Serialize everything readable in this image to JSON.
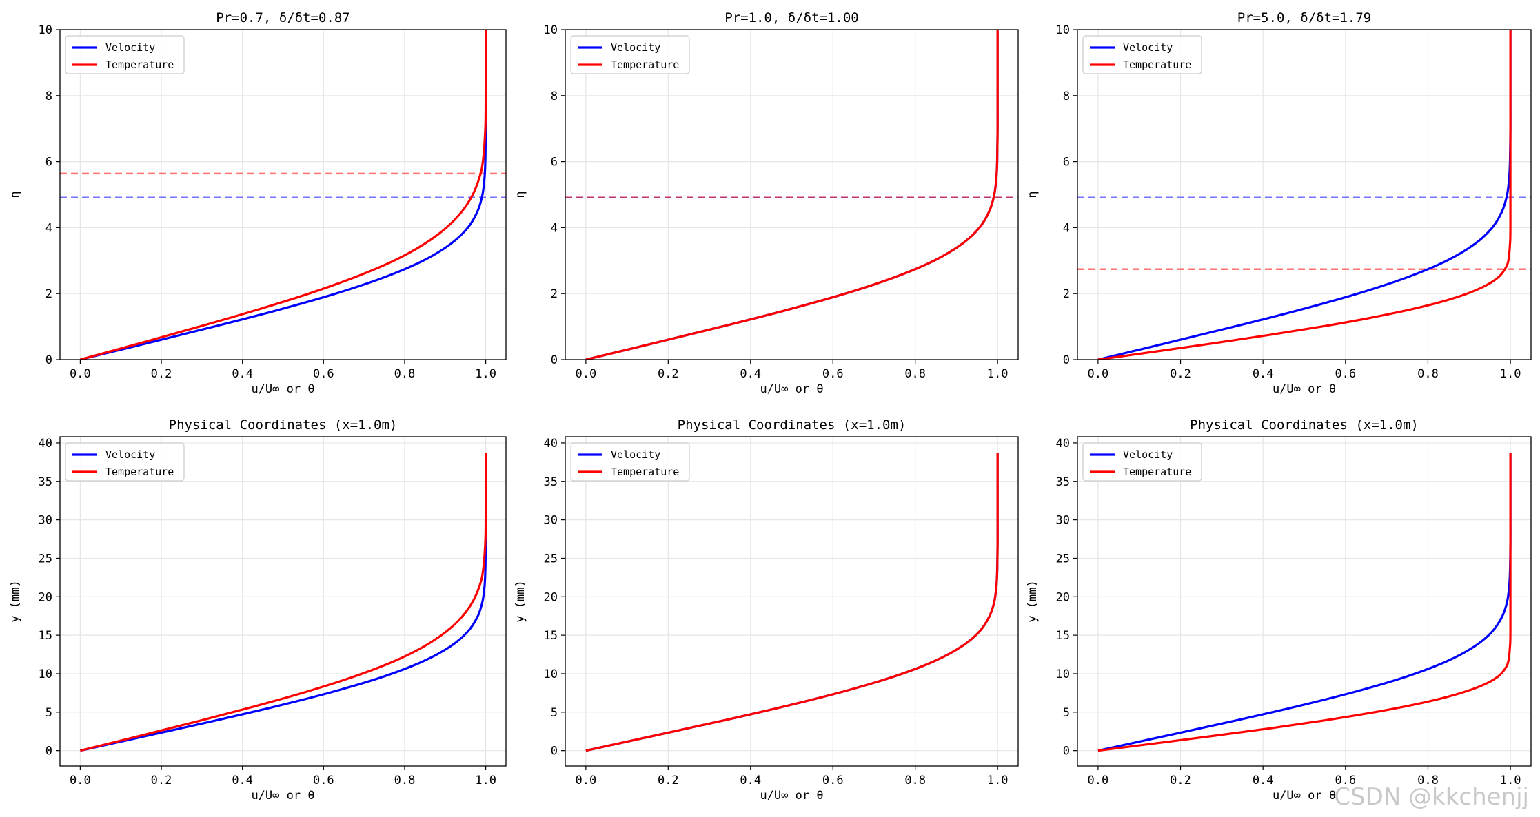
{
  "figure": {
    "watermark": "CSDN @kkchenjj",
    "colors": {
      "velocity": "#0000ff",
      "temperature": "#ff0000",
      "grid": "#e6e6e6",
      "background": "#ffffff"
    }
  },
  "chart_data": [
    {
      "type": "line",
      "title": "Pr=0.7, δ/δt=0.87",
      "xlabel": "u/U∞ or θ",
      "ylabel": "η",
      "xlim": [
        -0.05,
        1.05
      ],
      "ylim": [
        0,
        10
      ],
      "xticks": [
        "0.0",
        "0.2",
        "0.4",
        "0.6",
        "0.8",
        "1.0"
      ],
      "yticks": [
        "0",
        "2",
        "4",
        "6",
        "8",
        "10"
      ],
      "grid": true,
      "legend": "top-left",
      "hlines": [
        {
          "y": 4.91,
          "color": "velocity",
          "style": "dashed"
        },
        {
          "y": 5.64,
          "color": "temperature",
          "style": "dashed"
        }
      ],
      "series": [
        {
          "name": "Velocity",
          "color": "velocity",
          "y": [
            0,
            0.5,
            1,
            1.5,
            2,
            2.5,
            3,
            3.5,
            4,
            4.5,
            5,
            5.5,
            6,
            7,
            8,
            10
          ],
          "x": [
            0,
            0.166,
            0.33,
            0.487,
            0.63,
            0.751,
            0.846,
            0.913,
            0.956,
            0.98,
            0.992,
            0.997,
            0.999,
            1.0,
            1.0,
            1.0
          ]
        },
        {
          "name": "Temperature",
          "color": "temperature",
          "y": [
            0,
            0.5,
            1,
            1.5,
            2,
            2.5,
            3,
            3.5,
            4,
            4.5,
            5,
            5.5,
            6,
            7,
            8,
            10
          ],
          "x": [
            0,
            0.148,
            0.294,
            0.434,
            0.564,
            0.678,
            0.774,
            0.848,
            0.903,
            0.942,
            0.968,
            0.984,
            0.993,
            0.999,
            1.0,
            1.0
          ]
        }
      ]
    },
    {
      "type": "line",
      "title": "Pr=1.0, δ/δt=1.00",
      "xlabel": "u/U∞ or θ",
      "ylabel": "η",
      "xlim": [
        -0.05,
        1.05
      ],
      "ylim": [
        0,
        10
      ],
      "xticks": [
        "0.0",
        "0.2",
        "0.4",
        "0.6",
        "0.8",
        "1.0"
      ],
      "yticks": [
        "0",
        "2",
        "4",
        "6",
        "8",
        "10"
      ],
      "grid": true,
      "legend": "top-left",
      "hlines": [
        {
          "y": 4.91,
          "color": "velocity",
          "style": "dashed"
        },
        {
          "y": 4.91,
          "color": "temperature",
          "style": "dashed"
        }
      ],
      "series": [
        {
          "name": "Velocity",
          "color": "velocity",
          "y": [
            0,
            0.5,
            1,
            1.5,
            2,
            2.5,
            3,
            3.5,
            4,
            4.5,
            5,
            5.5,
            6,
            7,
            8,
            10
          ],
          "x": [
            0,
            0.166,
            0.33,
            0.487,
            0.63,
            0.751,
            0.846,
            0.913,
            0.956,
            0.98,
            0.992,
            0.997,
            0.999,
            1.0,
            1.0,
            1.0
          ]
        },
        {
          "name": "Temperature",
          "color": "temperature",
          "y": [
            0,
            0.5,
            1,
            1.5,
            2,
            2.5,
            3,
            3.5,
            4,
            4.5,
            5,
            5.5,
            6,
            7,
            8,
            10
          ],
          "x": [
            0,
            0.166,
            0.33,
            0.487,
            0.63,
            0.751,
            0.846,
            0.913,
            0.956,
            0.98,
            0.992,
            0.997,
            0.999,
            1.0,
            1.0,
            1.0
          ]
        }
      ]
    },
    {
      "type": "line",
      "title": "Pr=5.0, δ/δt=1.79",
      "xlabel": "u/U∞ or θ",
      "ylabel": "η",
      "xlim": [
        -0.05,
        1.05
      ],
      "ylim": [
        0,
        10
      ],
      "xticks": [
        "0.0",
        "0.2",
        "0.4",
        "0.6",
        "0.8",
        "1.0"
      ],
      "yticks": [
        "0",
        "2",
        "4",
        "6",
        "8",
        "10"
      ],
      "grid": true,
      "legend": "top-left",
      "hlines": [
        {
          "y": 4.91,
          "color": "velocity",
          "style": "dashed"
        },
        {
          "y": 2.74,
          "color": "temperature",
          "style": "dashed"
        }
      ],
      "series": [
        {
          "name": "Velocity",
          "color": "velocity",
          "y": [
            0,
            0.5,
            1,
            1.5,
            2,
            2.5,
            3,
            3.5,
            4,
            4.5,
            5,
            5.5,
            6,
            7,
            8,
            10
          ],
          "x": [
            0,
            0.166,
            0.33,
            0.487,
            0.63,
            0.751,
            0.846,
            0.913,
            0.956,
            0.98,
            0.992,
            0.997,
            0.999,
            1.0,
            1.0,
            1.0
          ]
        },
        {
          "name": "Temperature",
          "color": "temperature",
          "y": [
            0,
            0.25,
            0.5,
            0.75,
            1,
            1.25,
            1.5,
            1.75,
            2,
            2.25,
            2.5,
            2.75,
            3,
            3.5,
            4,
            6,
            10
          ],
          "x": [
            0,
            0.143,
            0.283,
            0.417,
            0.542,
            0.654,
            0.751,
            0.832,
            0.895,
            0.941,
            0.971,
            0.987,
            0.995,
            0.999,
            1.0,
            1.0,
            1.0
          ]
        }
      ]
    },
    {
      "type": "line",
      "title": "Physical Coordinates (x=1.0m)",
      "xlabel": "u/U∞ or θ",
      "ylabel": "y (mm)",
      "xlim": [
        -0.05,
        1.05
      ],
      "ylim": [
        -2,
        40.8
      ],
      "xticks": [
        "0.0",
        "0.2",
        "0.4",
        "0.6",
        "0.8",
        "1.0"
      ],
      "yticks": [
        "0",
        "5",
        "10",
        "15",
        "20",
        "25",
        "30",
        "35",
        "40"
      ],
      "grid": true,
      "legend": "top-left",
      "hlines": [],
      "series": [
        {
          "name": "Velocity",
          "color": "velocity",
          "y": [
            0,
            1.94,
            3.87,
            5.81,
            7.75,
            9.68,
            11.62,
            13.55,
            15.49,
            17.43,
            19.36,
            21.3,
            23.24,
            27.1,
            31.0,
            38.73
          ],
          "x": [
            0,
            0.166,
            0.33,
            0.487,
            0.63,
            0.751,
            0.846,
            0.913,
            0.956,
            0.98,
            0.992,
            0.997,
            0.999,
            1.0,
            1.0,
            1.0
          ]
        },
        {
          "name": "Temperature",
          "color": "temperature",
          "y": [
            0,
            1.94,
            3.87,
            5.81,
            7.75,
            9.68,
            11.62,
            13.55,
            15.49,
            17.43,
            19.36,
            21.3,
            23.24,
            27.1,
            31.0,
            38.73
          ],
          "x": [
            0,
            0.148,
            0.294,
            0.434,
            0.564,
            0.678,
            0.774,
            0.848,
            0.903,
            0.942,
            0.968,
            0.984,
            0.993,
            0.999,
            1.0,
            1.0
          ]
        }
      ]
    },
    {
      "type": "line",
      "title": "Physical Coordinates (x=1.0m)",
      "xlabel": "u/U∞ or θ",
      "ylabel": "y (mm)",
      "xlim": [
        -0.05,
        1.05
      ],
      "ylim": [
        -2,
        40.8
      ],
      "xticks": [
        "0.0",
        "0.2",
        "0.4",
        "0.6",
        "0.8",
        "1.0"
      ],
      "yticks": [
        "0",
        "5",
        "10",
        "15",
        "20",
        "25",
        "30",
        "35",
        "40"
      ],
      "grid": true,
      "legend": "top-left",
      "hlines": [],
      "series": [
        {
          "name": "Velocity",
          "color": "velocity",
          "y": [
            0,
            1.94,
            3.87,
            5.81,
            7.75,
            9.68,
            11.62,
            13.55,
            15.49,
            17.43,
            19.36,
            21.3,
            23.24,
            27.1,
            31.0,
            38.73
          ],
          "x": [
            0,
            0.166,
            0.33,
            0.487,
            0.63,
            0.751,
            0.846,
            0.913,
            0.956,
            0.98,
            0.992,
            0.997,
            0.999,
            1.0,
            1.0,
            1.0
          ]
        },
        {
          "name": "Temperature",
          "color": "temperature",
          "y": [
            0,
            1.94,
            3.87,
            5.81,
            7.75,
            9.68,
            11.62,
            13.55,
            15.49,
            17.43,
            19.36,
            21.3,
            23.24,
            27.1,
            31.0,
            38.73
          ],
          "x": [
            0,
            0.166,
            0.33,
            0.487,
            0.63,
            0.751,
            0.846,
            0.913,
            0.956,
            0.98,
            0.992,
            0.997,
            0.999,
            1.0,
            1.0,
            1.0
          ]
        }
      ]
    },
    {
      "type": "line",
      "title": "Physical Coordinates (x=1.0m)",
      "xlabel": "u/U∞ or θ",
      "ylabel": "y (mm)",
      "xlim": [
        -0.05,
        1.05
      ],
      "ylim": [
        -2,
        40.8
      ],
      "xticks": [
        "0.0",
        "0.2",
        "0.4",
        "0.6",
        "0.8",
        "1.0"
      ],
      "yticks": [
        "0",
        "5",
        "10",
        "15",
        "20",
        "25",
        "30",
        "35",
        "40"
      ],
      "grid": true,
      "legend": "top-left",
      "hlines": [],
      "series": [
        {
          "name": "Velocity",
          "color": "velocity",
          "y": [
            0,
            1.94,
            3.87,
            5.81,
            7.75,
            9.68,
            11.62,
            13.55,
            15.49,
            17.43,
            19.36,
            21.3,
            23.24,
            27.1,
            31.0,
            38.73
          ],
          "x": [
            0,
            0.166,
            0.33,
            0.487,
            0.63,
            0.751,
            0.846,
            0.913,
            0.956,
            0.98,
            0.992,
            0.997,
            0.999,
            1.0,
            1.0,
            1.0
          ]
        },
        {
          "name": "Temperature",
          "color": "temperature",
          "y": [
            0,
            0.97,
            1.94,
            2.9,
            3.87,
            4.84,
            5.81,
            6.78,
            7.75,
            8.71,
            9.68,
            10.65,
            11.62,
            13.55,
            15.49,
            23.24,
            38.73
          ],
          "x": [
            0,
            0.143,
            0.283,
            0.417,
            0.542,
            0.654,
            0.751,
            0.832,
            0.895,
            0.941,
            0.971,
            0.987,
            0.995,
            0.999,
            1.0,
            1.0,
            1.0
          ]
        }
      ]
    }
  ]
}
